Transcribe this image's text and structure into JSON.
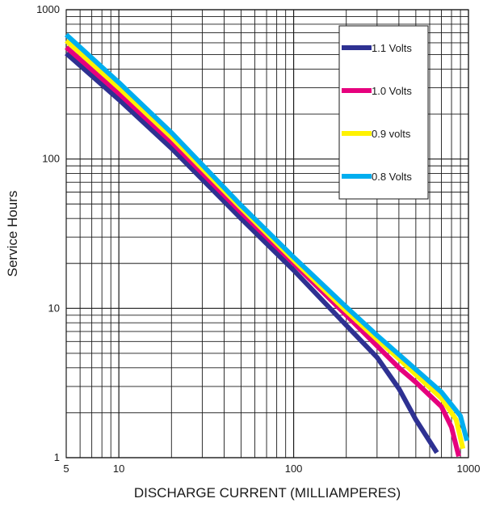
{
  "chart_data": {
    "type": "line",
    "title": "",
    "xlabel": "DISCHARGE CURRENT (MILLIAMPERES)",
    "ylabel": "Service Hours",
    "xscale": "log",
    "yscale": "log",
    "xlim": [
      5,
      1000
    ],
    "ylim": [
      1,
      1000
    ],
    "x_tick_labels": [
      "5",
      "10",
      "100",
      "1000"
    ],
    "x_ticks": [
      5,
      10,
      100,
      1000
    ],
    "y_tick_labels": [
      "1",
      "10",
      "100",
      "1000"
    ],
    "y_ticks": [
      1,
      10,
      100,
      1000
    ],
    "grid": true,
    "legend_position": "top-right",
    "series": [
      {
        "name": "1.1 Volts",
        "color": "#2e3192",
        "points": [
          [
            5,
            510
          ],
          [
            10,
            250
          ],
          [
            20,
            118
          ],
          [
            50,
            40
          ],
          [
            100,
            18
          ],
          [
            200,
            7.7
          ],
          [
            300,
            4.7
          ],
          [
            400,
            2.9
          ],
          [
            500,
            1.8
          ],
          [
            660,
            1.08
          ]
        ]
      },
      {
        "name": "1.0 Volts",
        "color": "#e6007e",
        "points": [
          [
            5,
            560
          ],
          [
            10,
            275
          ],
          [
            20,
            130
          ],
          [
            50,
            44
          ],
          [
            100,
            20
          ],
          [
            200,
            9
          ],
          [
            300,
            5.6
          ],
          [
            400,
            4
          ],
          [
            500,
            3.2
          ],
          [
            700,
            2.2
          ],
          [
            800,
            1.6
          ],
          [
            880,
            1.02
          ]
        ]
      },
      {
        "name": "0.9 volts",
        "color": "#fff200",
        "points": [
          [
            5,
            620
          ],
          [
            10,
            300
          ],
          [
            20,
            140
          ],
          [
            50,
            47
          ],
          [
            100,
            21
          ],
          [
            200,
            9.6
          ],
          [
            300,
            6.2
          ],
          [
            400,
            4.6
          ],
          [
            500,
            3.6
          ],
          [
            700,
            2.5
          ],
          [
            850,
            1.8
          ],
          [
            930,
            1.15
          ]
        ]
      },
      {
        "name": "0.8 Volts",
        "color": "#00aeef",
        "points": [
          [
            5,
            680
          ],
          [
            10,
            325
          ],
          [
            20,
            150
          ],
          [
            50,
            49
          ],
          [
            100,
            22
          ],
          [
            200,
            10.2
          ],
          [
            300,
            6.6
          ],
          [
            400,
            4.9
          ],
          [
            500,
            3.9
          ],
          [
            700,
            2.75
          ],
          [
            900,
            1.9
          ],
          [
            980,
            1.3
          ]
        ]
      }
    ]
  }
}
